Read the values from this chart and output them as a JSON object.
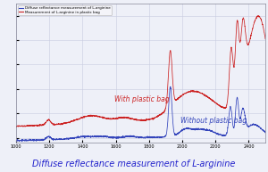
{
  "title": "Diffuse reflectance measurement of L-arginine",
  "legend_blue": "Diffuse reflectance measurement of L-arginine",
  "legend_red": "Measurement of L-arginine in plastic bag",
  "label_with": "With plastic bag",
  "label_without": "Without plastic bag",
  "xmin": 1000,
  "xmax": 2500,
  "background_color": "#eef0f8",
  "plot_bg": "#eef0f8",
  "blue_color": "#3344bb",
  "red_color": "#cc2222",
  "title_color": "#2222cc",
  "grid_color": "#c8cce0"
}
